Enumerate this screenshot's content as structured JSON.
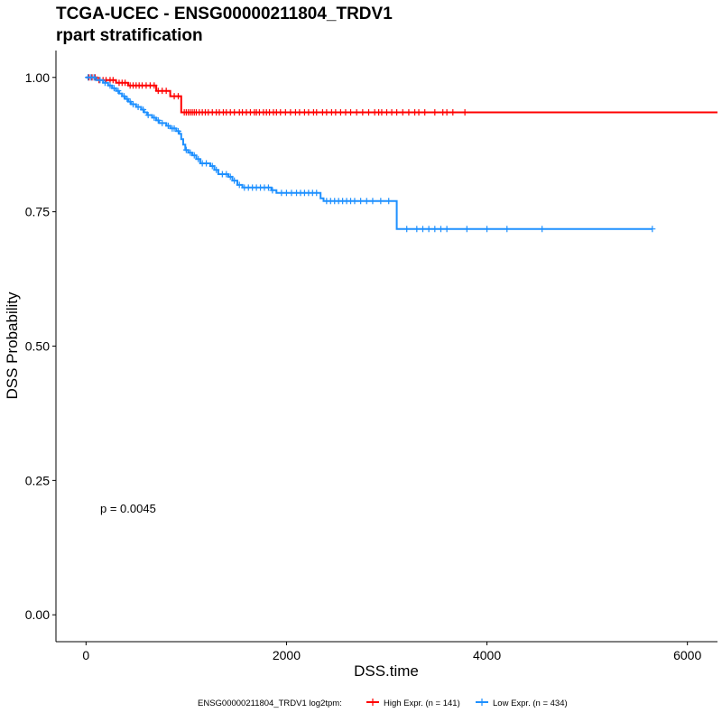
{
  "chart_data": {
    "type": "line",
    "title": "TCGA-UCEC - ENSG00000211804_TRDV1",
    "subtitle": "rpart stratification",
    "xlabel": "DSS.time",
    "ylabel": "DSS Probability",
    "xlim": [
      -300,
      6300
    ],
    "ylim": [
      -0.05,
      1.05
    ],
    "x_ticks": [
      0,
      2000,
      4000,
      6000
    ],
    "x_tick_labels": [
      "0",
      "2000",
      "4000",
      "6000"
    ],
    "y_ticks": [
      0,
      0.25,
      0.5,
      0.75,
      1.0
    ],
    "y_tick_labels": [
      "0.00",
      "0.25",
      "0.50",
      "0.75",
      "1.00"
    ],
    "grid": false,
    "legend_title": "ENSG00000211804_TRDV1 log2tpm:",
    "legend_position": "bottom",
    "annotation": "p = 0.0045",
    "series": [
      {
        "name": "High Expr. (n = 141)",
        "color": "#ff0000",
        "steps": [
          [
            0,
            1.0
          ],
          [
            110,
            0.995
          ],
          [
            300,
            0.99
          ],
          [
            420,
            0.985
          ],
          [
            700,
            0.975
          ],
          [
            840,
            0.965
          ],
          [
            950,
            0.935
          ],
          [
            6300,
            0.935
          ]
        ],
        "censor_x": [
          30,
          60,
          90,
          130,
          170,
          200,
          240,
          270,
          330,
          360,
          390,
          440,
          470,
          500,
          530,
          560,
          600,
          640,
          680,
          720,
          760,
          800,
          880,
          920,
          980,
          1000,
          1020,
          1040,
          1060,
          1080,
          1100,
          1130,
          1160,
          1190,
          1220,
          1260,
          1300,
          1330,
          1370,
          1400,
          1440,
          1480,
          1530,
          1560,
          1600,
          1640,
          1680,
          1700,
          1730,
          1770,
          1800,
          1830,
          1870,
          1900,
          1940,
          1990,
          2040,
          2090,
          2130,
          2180,
          2220,
          2270,
          2300,
          2360,
          2400,
          2450,
          2490,
          2540,
          2590,
          2640,
          2700,
          2760,
          2820,
          2880,
          2920,
          2950,
          3000,
          3050,
          3100,
          3160,
          3220,
          3280,
          3320,
          3380,
          3480,
          3560,
          3600,
          3660,
          3780
        ]
      },
      {
        "name": "Low Expr. (n = 434)",
        "color": "#1e90ff",
        "steps": [
          [
            0,
            1.0
          ],
          [
            100,
            0.995
          ],
          [
            170,
            0.99
          ],
          [
            220,
            0.985
          ],
          [
            260,
            0.98
          ],
          [
            300,
            0.975
          ],
          [
            330,
            0.97
          ],
          [
            360,
            0.965
          ],
          [
            390,
            0.96
          ],
          [
            420,
            0.955
          ],
          [
            450,
            0.95
          ],
          [
            500,
            0.945
          ],
          [
            550,
            0.94
          ],
          [
            580,
            0.935
          ],
          [
            610,
            0.93
          ],
          [
            660,
            0.925
          ],
          [
            700,
            0.92
          ],
          [
            730,
            0.915
          ],
          [
            800,
            0.91
          ],
          [
            840,
            0.905
          ],
          [
            900,
            0.9
          ],
          [
            930,
            0.895
          ],
          [
            950,
            0.885
          ],
          [
            970,
            0.875
          ],
          [
            990,
            0.865
          ],
          [
            1020,
            0.86
          ],
          [
            1060,
            0.855
          ],
          [
            1100,
            0.848
          ],
          [
            1140,
            0.84
          ],
          [
            1240,
            0.835
          ],
          [
            1280,
            0.828
          ],
          [
            1320,
            0.82
          ],
          [
            1420,
            0.815
          ],
          [
            1460,
            0.808
          ],
          [
            1510,
            0.8
          ],
          [
            1560,
            0.795
          ],
          [
            1850,
            0.79
          ],
          [
            1900,
            0.785
          ],
          [
            2340,
            0.775
          ],
          [
            2370,
            0.77
          ],
          [
            3100,
            0.718
          ],
          [
            5650,
            0.718
          ]
        ],
        "censor_x": [
          20,
          50,
          80,
          140,
          190,
          240,
          280,
          320,
          380,
          410,
          440,
          470,
          520,
          570,
          620,
          680,
          720,
          760,
          820,
          860,
          880,
          920,
          1000,
          1040,
          1080,
          1120,
          1160,
          1200,
          1260,
          1300,
          1360,
          1400,
          1440,
          1480,
          1530,
          1580,
          1620,
          1660,
          1700,
          1740,
          1780,
          1820,
          1860,
          1950,
          2000,
          2050,
          2100,
          2140,
          2180,
          2220,
          2260,
          2300,
          2400,
          2440,
          2480,
          2520,
          2560,
          2600,
          2640,
          2680,
          2740,
          2800,
          2860,
          2940,
          3020,
          3200,
          3300,
          3360,
          3420,
          3480,
          3540,
          3600,
          3800,
          4000,
          4200,
          4550,
          5650
        ]
      }
    ]
  }
}
